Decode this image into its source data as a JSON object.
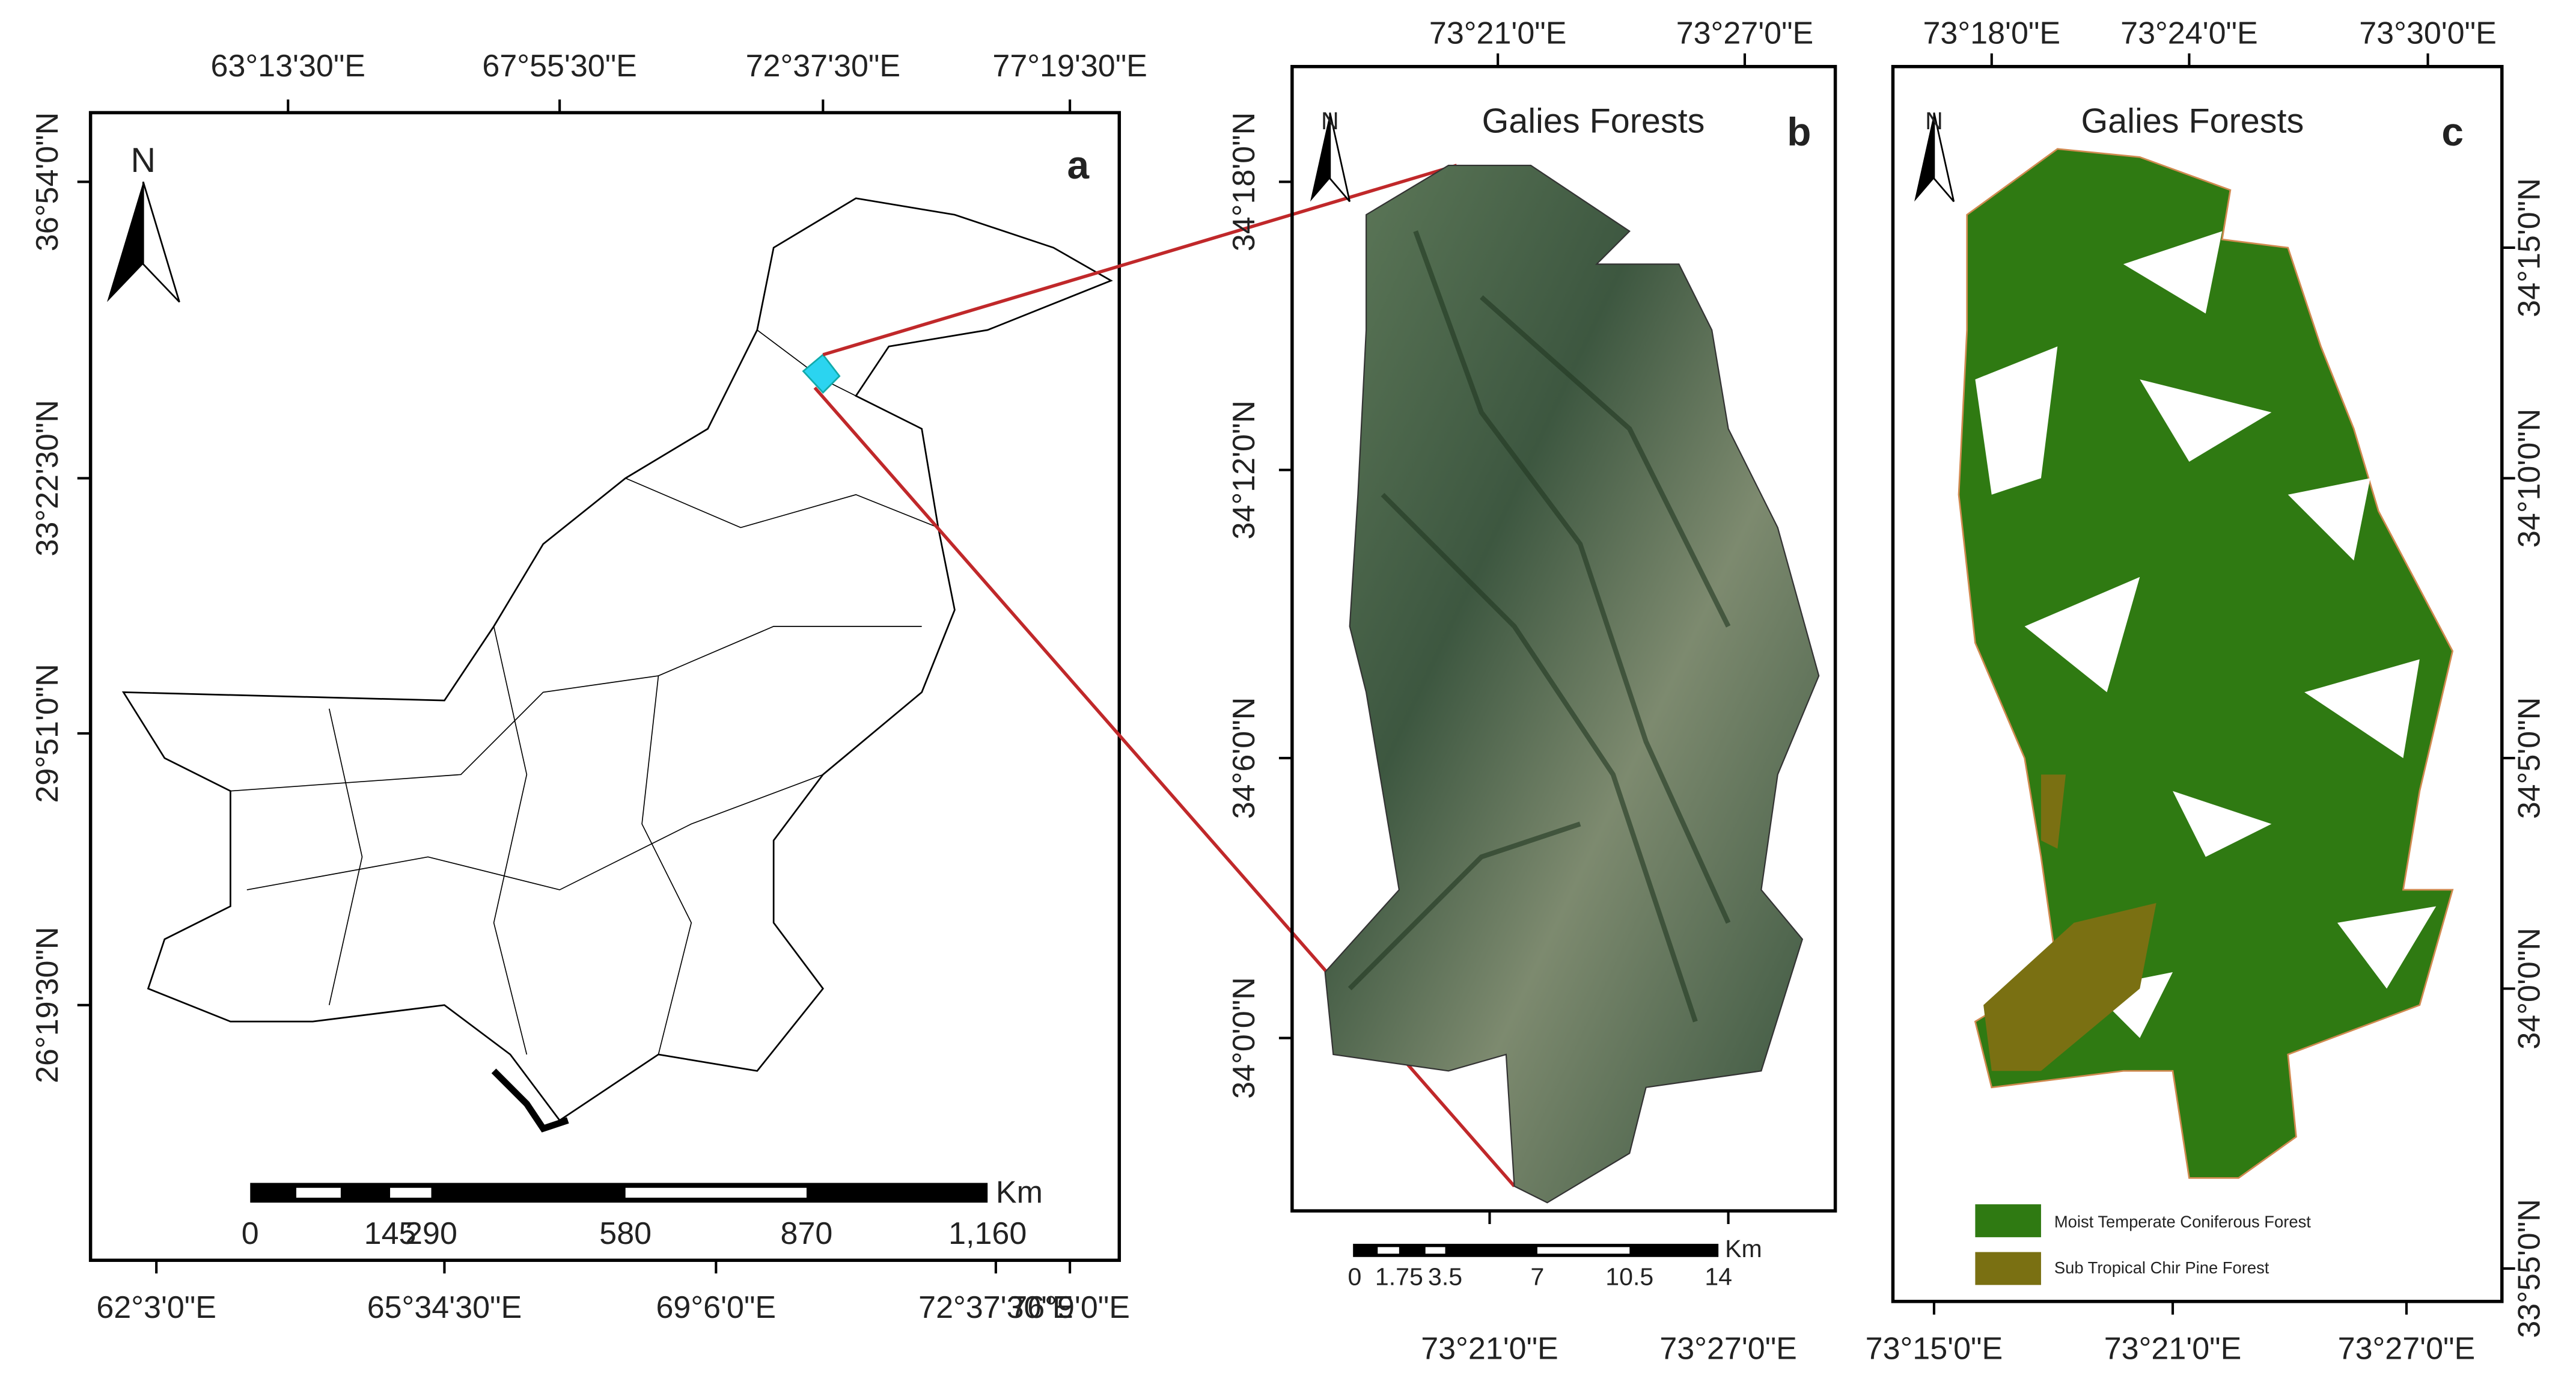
{
  "panels": [
    {
      "label": "a",
      "north": "N",
      "top_labels": [
        "63°13'30\"E",
        "67°55'30\"E",
        "72°37'30\"E",
        "77°19'30\"E"
      ],
      "bottom_labels": [
        "62°3'0\"E",
        "65°34'30\"E",
        "69°6'0\"E",
        "72°37'30\"E",
        "76°9'0\"E"
      ],
      "left_labels": [
        "36°54'0\"N",
        "33°22'30\"N",
        "29°51'0\"N",
        "26°19'30\"N"
      ],
      "scale_labels": [
        "0",
        "145",
        "290",
        "580",
        "870",
        "1,160"
      ],
      "scale_unit": "Km"
    },
    {
      "label": "b",
      "north": "N",
      "title": "Galies Forests",
      "top_labels": [
        "73°21'0\"E",
        "73°27'0\"E"
      ],
      "bottom_labels": [
        "73°21'0\"E",
        "73°27'0\"E"
      ],
      "left_labels": [
        "34°18'0\"N",
        "34°12'0\"N",
        "34°6'0\"N",
        "34°0'0\"N"
      ],
      "scale_labels": [
        "0",
        "1.75",
        "3.5",
        "7",
        "10.5",
        "14"
      ],
      "scale_unit": "Km"
    },
    {
      "label": "c",
      "north": "N",
      "title": "Galies Forests",
      "top_labels": [
        "73°18'0\"E",
        "73°24'0\"E",
        "73°30'0\"E"
      ],
      "bottom_labels": [
        "73°15'0\"E",
        "73°21'0\"E",
        "73°27'0\"E"
      ],
      "right_labels": [
        "34°15'0\"N",
        "34°10'0\"N",
        "34°5'0\"N",
        "34°0'0\"N",
        "33°55'0\"N"
      ],
      "legend": [
        "Moist Temperate Coniferous Forest",
        "Sub Tropical Chir Pine Forest"
      ]
    }
  ]
}
